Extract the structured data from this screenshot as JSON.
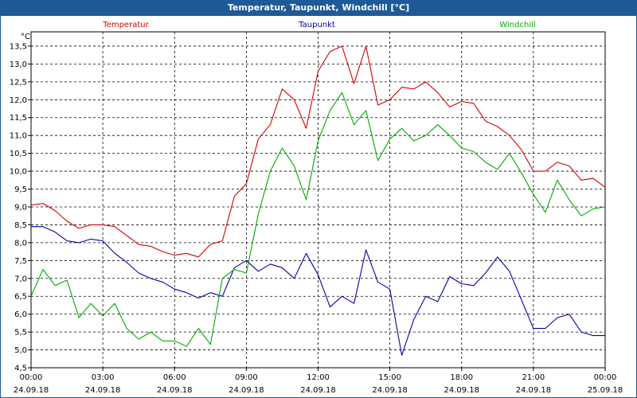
{
  "window": {
    "title": "Temperatur, Taupunkt, Windchill [°C]"
  },
  "chart_data": {
    "type": "line",
    "title": "Temperatur, Taupunkt, Windchill [°C]",
    "yunit": "°C",
    "ylim": [
      4.5,
      13.9
    ],
    "xlim": [
      0,
      24
    ],
    "grid": true,
    "legend_placement": "top",
    "yticks": [
      "4,5",
      "5,0",
      "5,5",
      "6,0",
      "6,5",
      "7,0",
      "7,5",
      "8,0",
      "8,5",
      "9,0",
      "9,5",
      "10,0",
      "10,5",
      "11,0",
      "11,5",
      "12,0",
      "12,5",
      "13,0",
      "13,5"
    ],
    "xticks": [
      {
        "time": "00:00",
        "date": "24.09.18"
      },
      {
        "time": "03:00",
        "date": "24.09.18"
      },
      {
        "time": "06:00",
        "date": "24.09.18"
      },
      {
        "time": "09:00",
        "date": "24.09.18"
      },
      {
        "time": "12:00",
        "date": "24.09.18"
      },
      {
        "time": "15:00",
        "date": "24.09.18"
      },
      {
        "time": "18:00",
        "date": "24.09.18"
      },
      {
        "time": "21:00",
        "date": "24.09.18"
      },
      {
        "time": "00:00",
        "date": "25.09.18"
      }
    ],
    "series": [
      {
        "name": "Temperatur",
        "color": "#d40000",
        "x": [
          0,
          0.5,
          1,
          1.5,
          2,
          2.5,
          3,
          3.5,
          4,
          4.5,
          5,
          5.5,
          6,
          6.5,
          7,
          7.5,
          8,
          8.5,
          9,
          9.5,
          10,
          10.5,
          11,
          11.5,
          12,
          12.5,
          13,
          13.5,
          14,
          14.5,
          15,
          15.5,
          16,
          16.5,
          17,
          17.5,
          18,
          18.5,
          19,
          19.5,
          20,
          20.5,
          21,
          21.5,
          22,
          22.5,
          23,
          23.5,
          24
        ],
        "values": [
          9.05,
          9.1,
          8.9,
          8.6,
          8.4,
          8.5,
          8.5,
          8.45,
          8.2,
          7.95,
          7.9,
          7.75,
          7.65,
          7.7,
          7.6,
          7.95,
          8.05,
          9.3,
          9.65,
          10.9,
          11.3,
          12.3,
          12.0,
          11.2,
          12.8,
          13.35,
          13.5,
          12.45,
          13.5,
          11.85,
          12.0,
          12.35,
          12.3,
          12.5,
          12.2,
          11.8,
          11.95,
          11.9,
          11.4,
          11.25,
          11.0,
          10.6,
          10.0,
          10.0,
          10.25,
          10.15,
          9.75,
          9.8,
          9.55
        ]
      },
      {
        "name": "Taupunkt",
        "color": "#0000aa",
        "x": [
          0,
          0.5,
          1,
          1.5,
          2,
          2.5,
          3,
          3.5,
          4,
          4.5,
          5,
          5.5,
          6,
          6.5,
          7,
          7.5,
          8,
          8.5,
          9,
          9.5,
          10,
          10.5,
          11,
          11.5,
          12,
          12.5,
          13,
          13.5,
          14,
          14.5,
          15,
          15.5,
          16,
          16.5,
          17,
          17.5,
          18,
          18.5,
          19,
          19.5,
          20,
          20.5,
          21,
          21.5,
          22,
          22.5,
          23,
          23.5,
          24
        ],
        "values": [
          8.45,
          8.45,
          8.3,
          8.05,
          8.0,
          8.1,
          8.05,
          7.7,
          7.45,
          7.15,
          7.0,
          6.9,
          6.7,
          6.6,
          6.45,
          6.6,
          6.5,
          7.3,
          7.5,
          7.2,
          7.4,
          7.3,
          7.0,
          7.7,
          7.1,
          6.2,
          6.5,
          6.3,
          7.8,
          6.9,
          6.7,
          4.85,
          5.85,
          6.5,
          6.35,
          7.05,
          6.85,
          6.8,
          7.15,
          7.6,
          7.2,
          6.4,
          5.6,
          5.6,
          5.9,
          6.0,
          5.5,
          5.4,
          5.4
        ]
      },
      {
        "name": "Windchill",
        "color": "#00aa00",
        "x": [
          0,
          0.5,
          1,
          1.5,
          2,
          2.5,
          3,
          3.5,
          4,
          4.5,
          5,
          5.5,
          6,
          6.5,
          7,
          7.5,
          8,
          8.5,
          9,
          9.5,
          10,
          10.5,
          11,
          11.5,
          12,
          12.5,
          13,
          13.5,
          14,
          14.5,
          15,
          15.5,
          16,
          16.5,
          17,
          17.5,
          18,
          18.5,
          19,
          19.5,
          20,
          20.5,
          21,
          21.5,
          22,
          22.5,
          23,
          23.5,
          24
        ],
        "values": [
          6.5,
          7.25,
          6.8,
          6.95,
          5.9,
          6.3,
          5.95,
          6.3,
          5.6,
          5.3,
          5.5,
          5.25,
          5.25,
          5.1,
          5.6,
          5.15,
          7.0,
          7.25,
          7.15,
          8.8,
          10.0,
          10.65,
          10.15,
          9.2,
          10.85,
          11.7,
          12.2,
          11.3,
          11.7,
          10.3,
          10.9,
          11.2,
          10.85,
          11.0,
          11.3,
          11.0,
          10.65,
          10.55,
          10.25,
          10.05,
          10.5,
          9.95,
          9.35,
          8.85,
          9.75,
          9.2,
          8.75,
          8.95,
          9.0
        ]
      }
    ]
  }
}
